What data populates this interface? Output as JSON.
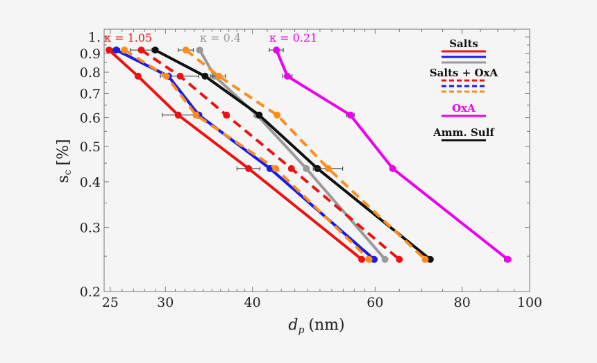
{
  "chart_data": {
    "type": "line",
    "xlabel": "d",
    "xlabel_sub": "p",
    "xlabel_unit": "(nm)",
    "ylabel": "s",
    "ylabel_sub": "c",
    "ylabel_unit": "[%]",
    "x_scale": "log",
    "y_scale": "log",
    "xlim": [
      24.5,
      100
    ],
    "ylim": [
      0.2,
      1.05
    ],
    "x_ticks": [
      {
        "value": 25,
        "label": "25"
      },
      {
        "value": 30,
        "label": "30"
      },
      {
        "value": 40,
        "label": "40"
      },
      {
        "value": 60,
        "label": "60"
      },
      {
        "value": 80,
        "label": "80"
      },
      {
        "value": 100,
        "label": "100"
      }
    ],
    "y_ticks": [
      {
        "value": 0.2,
        "label": "0.2"
      },
      {
        "value": 0.3,
        "label": "0.3"
      },
      {
        "value": 0.4,
        "label": "0.4"
      },
      {
        "value": 0.5,
        "label": "0.5"
      },
      {
        "value": 0.6,
        "label": "0.6"
      },
      {
        "value": 0.7,
        "label": "0.7"
      },
      {
        "value": 0.8,
        "label": "0.8"
      },
      {
        "value": 0.9,
        "label": "0.9"
      },
      {
        "value": 1.0,
        "label": "1."
      }
    ],
    "kappa_labels": [
      {
        "text": "κ = 1.05",
        "color": "#ee1111"
      },
      {
        "text": "κ = 0.4",
        "color": "#999999"
      },
      {
        "text": "κ = 0.21",
        "color": "#ee00ee"
      }
    ],
    "legend": {
      "position": "top-right",
      "groups": [
        {
          "title": "Salts",
          "title_color": "#111111",
          "swatches": [
            {
              "color": "#ee1111",
              "dash": false
            },
            {
              "color": "#1a1aee",
              "dash": false
            },
            {
              "color": "#999999",
              "dash": false
            }
          ]
        },
        {
          "title": "Salts + OxA",
          "title_color": "#111111",
          "swatches": [
            {
              "color": "#ee1111",
              "dash": true
            },
            {
              "color": "#1a1aee",
              "dash": true
            },
            {
              "color": "#ff8c1a",
              "dash": true
            }
          ]
        },
        {
          "title": "OxA",
          "title_color": "#ee00ee",
          "swatches": [
            {
              "color": "#ee00ee",
              "dash": false
            }
          ]
        },
        {
          "title": "Amm. Sulf",
          "title_color": "#111111",
          "swatches": [
            {
              "color": "#111111",
              "dash": false
            }
          ]
        }
      ]
    },
    "series": [
      {
        "color": "#ee1111",
        "dash": false,
        "x": [
          24.9,
          27.4,
          31.3,
          39.5,
          57.4
        ],
        "y": [
          0.92,
          0.78,
          0.61,
          0.435,
          0.245
        ],
        "xerr": [
          0.2,
          0.2,
          1.6,
          1.5,
          0.3
        ]
      },
      {
        "color": "#1a1aee",
        "dash": false,
        "x": [
          25.5,
          30.3,
          33.5,
          42.4,
          59.8
        ],
        "y": [
          0.92,
          0.78,
          0.61,
          0.435,
          0.245
        ],
        "xerr": [
          0.3,
          0.2,
          0.3,
          0.4,
          0.3
        ]
      },
      {
        "color": "#999999",
        "dash": false,
        "x": [
          33.6,
          35.3,
          40.6,
          47.8,
          62.0
        ],
        "y": [
          0.92,
          0.78,
          0.61,
          0.435,
          0.245
        ],
        "xerr": [
          0.3,
          0.5,
          0.4,
          0.4,
          0.3
        ]
      },
      {
        "color": "#111111",
        "dash": false,
        "x": [
          29.0,
          34.2,
          40.9,
          49.6,
          72.0
        ],
        "y": [
          0.92,
          0.78,
          0.61,
          0.435,
          0.245
        ],
        "xerr": [
          0.3,
          0.3,
          0.3,
          0.3,
          0.3
        ]
      },
      {
        "color": "#ee00ee",
        "dash": false,
        "x": [
          43.3,
          44.9,
          55.3,
          63.6,
          93.0
        ],
        "y": [
          0.92,
          0.78,
          0.61,
          0.435,
          0.245
        ],
        "xerr": [
          1.0,
          0.7,
          0.7,
          0.3,
          1.0
        ]
      },
      {
        "color": "#ee1111",
        "dash": true,
        "x": [
          27.7,
          31.5,
          36.7,
          45.5,
          65.0
        ],
        "y": [
          0.92,
          0.78,
          0.61,
          0.435,
          0.245
        ],
        "xerr": [
          1.0,
          2.0,
          0.3,
          0.3,
          0.3
        ]
      },
      {
        "color": "#1a1aee",
        "dash": true,
        "x": [
          25.5,
          30.3,
          33.5,
          42.4,
          59.8
        ],
        "y": [
          0.92,
          0.78,
          0.61,
          0.435,
          0.245
        ],
        "xerr": [
          0,
          0,
          0,
          0,
          0
        ]
      },
      {
        "color": "#ff8c1a",
        "dash": true,
        "x": [
          26.2,
          30.1,
          33.2,
          43.2,
          58.8
        ],
        "y": [
          0.92,
          0.78,
          0.61,
          0.435,
          0.245
        ],
        "xerr": [
          0,
          0,
          0,
          0,
          0
        ]
      },
      {
        "color": "#ff8c1a",
        "dash": true,
        "x": [
          32.1,
          35.8,
          43.4,
          51.4,
          70.8
        ],
        "y": [
          0.92,
          0.78,
          0.61,
          0.435,
          0.245
        ],
        "xerr": [
          0.8,
          0.8,
          0.3,
          2.5,
          0.3
        ]
      }
    ]
  }
}
